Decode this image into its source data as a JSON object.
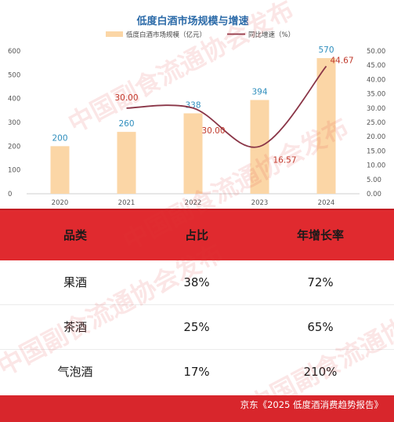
{
  "chart_data": {
    "type": "bar+line",
    "title": "低度白酒市场规模与增速",
    "legend": {
      "position": "top-center",
      "items": [
        "低度白酒市场规模（亿元）",
        "同比增速（%）"
      ]
    },
    "categories": [
      "2020",
      "2021",
      "2022",
      "2023",
      "2024"
    ],
    "series": [
      {
        "name": "低度白酒市场规模（亿元）",
        "kind": "bar",
        "axis": "left",
        "values": [
          200,
          260,
          338,
          394,
          570
        ],
        "labels": [
          "200",
          "260",
          "338",
          "394",
          "570"
        ]
      },
      {
        "name": "同比增速（%）",
        "kind": "line",
        "axis": "right",
        "values": [
          null,
          30.0,
          30.0,
          16.57,
          44.67
        ],
        "labels": [
          "",
          "30.00",
          "30.00",
          "16.57",
          "44.67"
        ]
      }
    ],
    "left_axis": {
      "ylim": [
        0,
        600
      ],
      "ticks": [
        0,
        100,
        200,
        300,
        400,
        500,
        600
      ]
    },
    "right_axis": {
      "ylim": [
        0,
        50
      ],
      "ticks": [
        "0.00",
        "5.00",
        "10.00",
        "15.00",
        "20.00",
        "25.00",
        "30.00",
        "35.00",
        "40.00",
        "45.00",
        "50.00"
      ]
    },
    "grid": false,
    "colors": {
      "bar": "#fbd6a6",
      "line": "#8a3547",
      "bar_label": "#2f8ebd",
      "line_label": "#c0392b",
      "title": "#2b6aa8"
    }
  },
  "table": {
    "headers": [
      "品类",
      "占比",
      "年增长率"
    ],
    "rows": [
      [
        "果酒",
        "38%",
        "72%"
      ],
      [
        "茶酒",
        "25%",
        "65%"
      ],
      [
        "气泡酒",
        "17%",
        "210%"
      ]
    ]
  },
  "watermark": "中国副食流通协会发布",
  "footer": "京东《2025 低度酒消费趋势报告》"
}
